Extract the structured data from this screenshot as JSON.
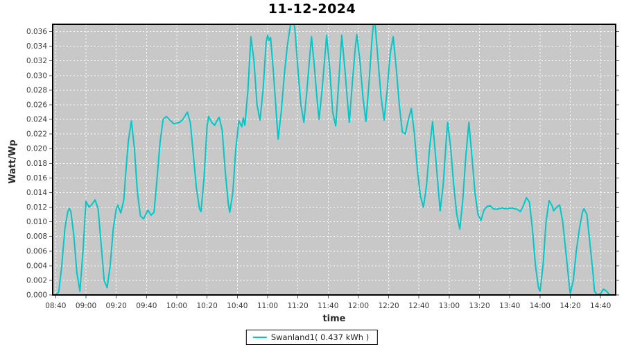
{
  "chart_data": {
    "type": "line",
    "title": "11-12-2024",
    "xlabel": "time",
    "ylabel": "Watt/Wp",
    "x_tick_labels": [
      "08:40",
      "09:00",
      "09:20",
      "09:40",
      "10:00",
      "10:20",
      "10:40",
      "11:00",
      "11:20",
      "11:40",
      "12:00",
      "12:20",
      "12:40",
      "13:00",
      "13:20",
      "13:40",
      "14:00",
      "14:20",
      "14:40"
    ],
    "x_tick_interval_minutes": 20,
    "y_tick_labels": [
      "0.000",
      "0.002",
      "0.004",
      "0.006",
      "0.008",
      "0.010",
      "0.012",
      "0.014",
      "0.016",
      "0.018",
      "0.020",
      "0.022",
      "0.024",
      "0.026",
      "0.028",
      "0.030",
      "0.032",
      "0.034",
      "0.036"
    ],
    "y_tick_step": 0.002,
    "ylim": [
      0,
      0.037
    ],
    "grid": true,
    "colors": {
      "plot_background": "#c8c8c8",
      "grid": "#ffffff",
      "frame": "#000000",
      "tick": "#5a5a5a",
      "tick_text": "#383838",
      "series": "#00c8c8"
    },
    "legend": {
      "position": "bottom-center",
      "entries": [
        {
          "label": "Swanland1( 0.437 kWh )",
          "color": "#00c8c8"
        }
      ]
    },
    "series": [
      {
        "name": "Swanland1( 0.437 kWh )",
        "color": "#00c8c8",
        "x_unit": "minutes_after_08:40",
        "points": [
          [
            0,
            0.0
          ],
          [
            2,
            0.0004
          ],
          [
            4,
            0.004
          ],
          [
            6,
            0.009
          ],
          [
            8,
            0.0114
          ],
          [
            9,
            0.0118
          ],
          [
            10,
            0.0114
          ],
          [
            12,
            0.008
          ],
          [
            14,
            0.003
          ],
          [
            16,
            0.0005
          ],
          [
            18,
            0.006
          ],
          [
            20,
            0.0128
          ],
          [
            22,
            0.012
          ],
          [
            24,
            0.0124
          ],
          [
            26,
            0.013
          ],
          [
            28,
            0.0118
          ],
          [
            30,
            0.007
          ],
          [
            32,
            0.002
          ],
          [
            34,
            0.001
          ],
          [
            36,
            0.004
          ],
          [
            38,
            0.009
          ],
          [
            40,
            0.0118
          ],
          [
            41,
            0.0123
          ],
          [
            43,
            0.0112
          ],
          [
            45,
            0.013
          ],
          [
            46,
            0.016
          ],
          [
            48,
            0.021
          ],
          [
            50,
            0.0238
          ],
          [
            52,
            0.02
          ],
          [
            54,
            0.014
          ],
          [
            56,
            0.0108
          ],
          [
            58,
            0.0104
          ],
          [
            60,
            0.0112
          ],
          [
            61,
            0.0116
          ],
          [
            63,
            0.0109
          ],
          [
            65,
            0.0113
          ],
          [
            67,
            0.016
          ],
          [
            69,
            0.021
          ],
          [
            71,
            0.024
          ],
          [
            73,
            0.0244
          ],
          [
            75,
            0.024
          ],
          [
            78,
            0.0234
          ],
          [
            80,
            0.0235
          ],
          [
            82,
            0.0236
          ],
          [
            84,
            0.024
          ],
          [
            87,
            0.025
          ],
          [
            89,
            0.0235
          ],
          [
            91,
            0.019
          ],
          [
            93,
            0.0145
          ],
          [
            95,
            0.0118
          ],
          [
            96,
            0.0114
          ],
          [
            98,
            0.016
          ],
          [
            100,
            0.023
          ],
          [
            101,
            0.0244
          ],
          [
            103,
            0.0236
          ],
          [
            105,
            0.0232
          ],
          [
            107,
            0.024
          ],
          [
            108,
            0.0243
          ],
          [
            110,
            0.0225
          ],
          [
            112,
            0.017
          ],
          [
            114,
            0.0125
          ],
          [
            115,
            0.0113
          ],
          [
            117,
            0.014
          ],
          [
            119,
            0.02
          ],
          [
            121,
            0.0238
          ],
          [
            123,
            0.023
          ],
          [
            124,
            0.0242
          ],
          [
            125,
            0.0232
          ],
          [
            127,
            0.028
          ],
          [
            129,
            0.0353
          ],
          [
            131,
            0.032
          ],
          [
            133,
            0.026
          ],
          [
            135,
            0.0239
          ],
          [
            137,
            0.028
          ],
          [
            139,
            0.0345
          ],
          [
            140,
            0.0355
          ],
          [
            141,
            0.0348
          ],
          [
            142,
            0.0352
          ],
          [
            144,
            0.03
          ],
          [
            146,
            0.024
          ],
          [
            147,
            0.0213
          ],
          [
            149,
            0.025
          ],
          [
            151,
            0.03
          ],
          [
            153,
            0.034
          ],
          [
            155,
            0.0368
          ],
          [
            156,
            0.0374
          ],
          [
            157,
            0.0374
          ],
          [
            158,
            0.0365
          ],
          [
            160,
            0.031
          ],
          [
            162,
            0.026
          ],
          [
            164,
            0.0236
          ],
          [
            166,
            0.028
          ],
          [
            168,
            0.033
          ],
          [
            169,
            0.0353
          ],
          [
            171,
            0.031
          ],
          [
            173,
            0.026
          ],
          [
            174,
            0.024
          ],
          [
            176,
            0.028
          ],
          [
            178,
            0.033
          ],
          [
            179,
            0.0355
          ],
          [
            181,
            0.031
          ],
          [
            183,
            0.025
          ],
          [
            185,
            0.0231
          ],
          [
            187,
            0.029
          ],
          [
            189,
            0.0355
          ],
          [
            191,
            0.031
          ],
          [
            193,
            0.026
          ],
          [
            194,
            0.0236
          ],
          [
            196,
            0.029
          ],
          [
            198,
            0.034
          ],
          [
            199,
            0.0356
          ],
          [
            201,
            0.032
          ],
          [
            203,
            0.027
          ],
          [
            205,
            0.0237
          ],
          [
            207,
            0.029
          ],
          [
            209,
            0.035
          ],
          [
            210,
            0.0374
          ],
          [
            211,
            0.0372
          ],
          [
            213,
            0.032
          ],
          [
            215,
            0.027
          ],
          [
            217,
            0.0239
          ],
          [
            219,
            0.028
          ],
          [
            221,
            0.033
          ],
          [
            223,
            0.0353
          ],
          [
            225,
            0.031
          ],
          [
            227,
            0.026
          ],
          [
            229,
            0.0223
          ],
          [
            231,
            0.022
          ],
          [
            233,
            0.024
          ],
          [
            235,
            0.0255
          ],
          [
            237,
            0.022
          ],
          [
            239,
            0.017
          ],
          [
            241,
            0.0135
          ],
          [
            243,
            0.012
          ],
          [
            245,
            0.015
          ],
          [
            247,
            0.02
          ],
          [
            249,
            0.0237
          ],
          [
            251,
            0.019
          ],
          [
            253,
            0.014
          ],
          [
            254,
            0.0115
          ],
          [
            256,
            0.015
          ],
          [
            258,
            0.021
          ],
          [
            259,
            0.0236
          ],
          [
            261,
            0.02
          ],
          [
            263,
            0.015
          ],
          [
            265,
            0.011
          ],
          [
            267,
            0.009
          ],
          [
            269,
            0.013
          ],
          [
            271,
            0.019
          ],
          [
            273,
            0.0236
          ],
          [
            275,
            0.019
          ],
          [
            277,
            0.014
          ],
          [
            279,
            0.011
          ],
          [
            281,
            0.0102
          ],
          [
            283,
            0.0116
          ],
          [
            285,
            0.0121
          ],
          [
            287,
            0.0122
          ],
          [
            289,
            0.0118
          ],
          [
            291,
            0.0117
          ],
          [
            293,
            0.0118
          ],
          [
            295,
            0.0119
          ],
          [
            297,
            0.0118
          ],
          [
            299,
            0.0118
          ],
          [
            301,
            0.0119
          ],
          [
            303,
            0.0118
          ],
          [
            305,
            0.0117
          ],
          [
            307,
            0.0114
          ],
          [
            309,
            0.0122
          ],
          [
            311,
            0.0133
          ],
          [
            313,
            0.0127
          ],
          [
            315,
            0.009
          ],
          [
            317,
            0.004
          ],
          [
            319,
            0.001
          ],
          [
            320,
            0.0005
          ],
          [
            322,
            0.004
          ],
          [
            324,
            0.01
          ],
          [
            326,
            0.0129
          ],
          [
            328,
            0.0122
          ],
          [
            329,
            0.0115
          ],
          [
            331,
            0.012
          ],
          [
            333,
            0.0123
          ],
          [
            335,
            0.01
          ],
          [
            337,
            0.006
          ],
          [
            339,
            0.002
          ],
          [
            340,
            0.0002
          ],
          [
            342,
            0.002
          ],
          [
            344,
            0.006
          ],
          [
            346,
            0.009
          ],
          [
            348,
            0.0113
          ],
          [
            349,
            0.0118
          ],
          [
            351,
            0.011
          ],
          [
            353,
            0.007
          ],
          [
            355,
            0.003
          ],
          [
            356,
            0.0005
          ],
          [
            358,
            0.0
          ],
          [
            360,
            0.0002
          ],
          [
            362,
            0.0008
          ],
          [
            364,
            0.0005
          ],
          [
            366,
            0.0
          ]
        ]
      }
    ]
  }
}
